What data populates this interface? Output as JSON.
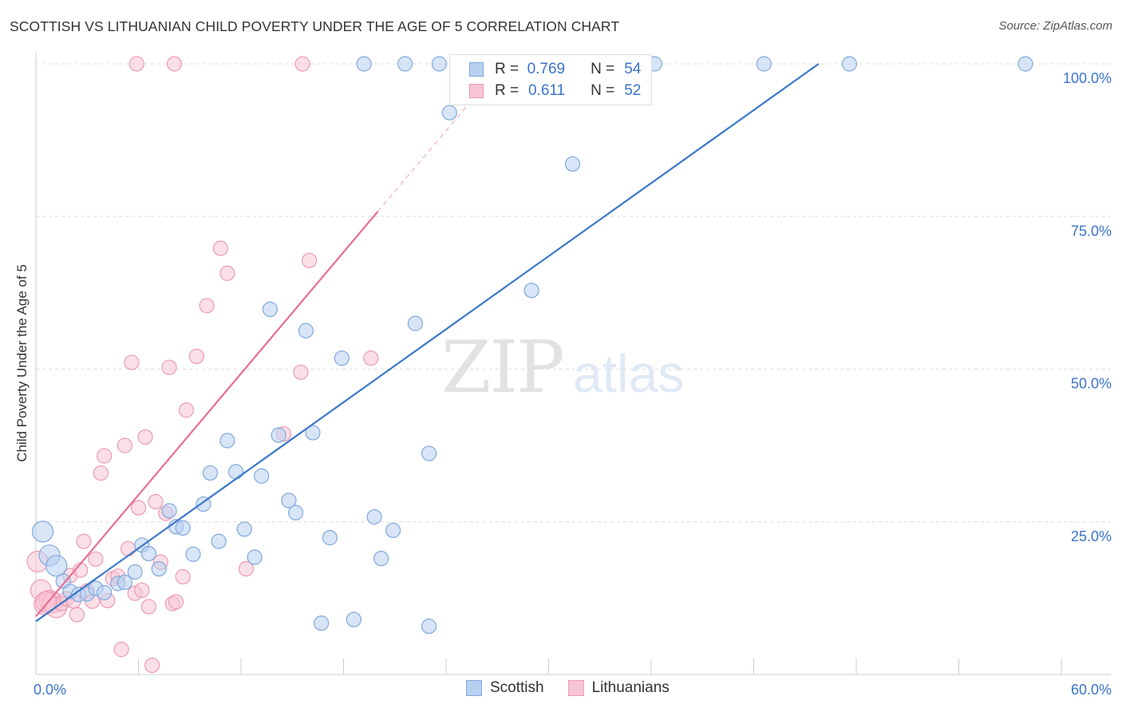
{
  "title": "SCOTTISH VS LITHUANIAN CHILD POVERTY UNDER THE AGE OF 5 CORRELATION CHART",
  "source": "Source: ZipAtlas.com",
  "watermark": {
    "zip": "ZIP",
    "atlas": "atlas"
  },
  "legend": {
    "scottish": {
      "r_label": "R =",
      "r_value": "0.769",
      "n_label": "N =",
      "n_value": "54"
    },
    "lithuanian": {
      "r_label": "R =",
      "r_value": "0.611",
      "n_label": "N =",
      "n_value": "52"
    }
  },
  "colors": {
    "scottish_fill": "#b8d0f0",
    "scottish_stroke": "#7ea8dd",
    "scottish_line": "#3a78c8",
    "lithuanian_fill": "#f7c4d4",
    "lithuanian_stroke": "#ec9ab4",
    "lithuanian_line": "#e86d94",
    "axis_text": "#3b74c9",
    "grid": "#dddddd"
  },
  "chart_data": {
    "type": "scatter",
    "xlabel": "",
    "ylabel": "Child Poverty Under the Age of 5",
    "xlim": [
      0,
      60
    ],
    "ylim": [
      0,
      100
    ],
    "x_tick_labels": [
      "0.0%",
      "60.0%"
    ],
    "y_tick_labels": [
      "25.0%",
      "50.0%",
      "75.0%",
      "100.0%"
    ],
    "y_ticks": [
      25,
      50,
      75,
      100
    ],
    "grid": true,
    "legend_position": "top-center",
    "series": [
      {
        "name": "Scottish",
        "trend": {
          "x0": 0,
          "y0": 8.7,
          "x1": 45.8,
          "y1": 100
        },
        "points": [
          [
            0.4,
            23.4
          ],
          [
            0.8,
            19.5
          ],
          [
            1.2,
            17.8
          ],
          [
            1.6,
            15.3
          ],
          [
            2.0,
            13.6
          ],
          [
            2.5,
            13.1
          ],
          [
            3.0,
            13.2
          ],
          [
            3.5,
            14.1
          ],
          [
            4.0,
            13.4
          ],
          [
            4.8,
            14.9
          ],
          [
            5.2,
            15.1
          ],
          [
            5.8,
            16.8
          ],
          [
            6.2,
            21.2
          ],
          [
            6.6,
            19.8
          ],
          [
            7.2,
            17.3
          ],
          [
            7.8,
            26.8
          ],
          [
            8.2,
            24.2
          ],
          [
            8.6,
            24.0
          ],
          [
            9.2,
            19.7
          ],
          [
            9.8,
            27.9
          ],
          [
            10.2,
            33.0
          ],
          [
            10.7,
            21.8
          ],
          [
            11.2,
            38.3
          ],
          [
            11.7,
            33.2
          ],
          [
            12.2,
            23.8
          ],
          [
            12.8,
            19.2
          ],
          [
            13.2,
            32.5
          ],
          [
            13.7,
            59.8
          ],
          [
            14.2,
            39.2
          ],
          [
            14.8,
            28.5
          ],
          [
            15.2,
            26.5
          ],
          [
            15.8,
            56.3
          ],
          [
            16.2,
            39.6
          ],
          [
            16.7,
            8.4
          ],
          [
            17.2,
            22.4
          ],
          [
            17.9,
            51.8
          ],
          [
            18.6,
            9.0
          ],
          [
            19.8,
            25.8
          ],
          [
            20.2,
            19.0
          ],
          [
            20.9,
            23.6
          ],
          [
            22.2,
            57.5
          ],
          [
            23.0,
            36.2
          ],
          [
            23.0,
            7.9
          ],
          [
            24.2,
            92.0
          ],
          [
            19.2,
            100
          ],
          [
            21.6,
            100
          ],
          [
            23.6,
            100
          ],
          [
            27.0,
            100
          ],
          [
            29.0,
            62.9
          ],
          [
            31.4,
            83.6
          ],
          [
            36.2,
            100
          ],
          [
            42.6,
            100
          ],
          [
            47.6,
            100
          ],
          [
            57.9,
            100
          ]
        ]
      },
      {
        "name": "Lithuanians",
        "trend": {
          "x0": 0,
          "y0": 9.5,
          "x1": 20,
          "y1": 75.8
        },
        "points": [
          [
            0.1,
            18.5
          ],
          [
            0.3,
            13.8
          ],
          [
            0.5,
            11.5
          ],
          [
            0.8,
            12.1
          ],
          [
            1.0,
            11.8
          ],
          [
            1.2,
            11.0
          ],
          [
            1.5,
            11.6
          ],
          [
            1.8,
            12.4
          ],
          [
            2.0,
            16.2
          ],
          [
            2.2,
            12.0
          ],
          [
            2.4,
            9.8
          ],
          [
            2.6,
            17.1
          ],
          [
            2.8,
            21.8
          ],
          [
            3.0,
            13.7
          ],
          [
            3.3,
            12.0
          ],
          [
            3.5,
            18.9
          ],
          [
            3.8,
            33.0
          ],
          [
            4.0,
            35.8
          ],
          [
            4.2,
            12.1
          ],
          [
            4.5,
            15.7
          ],
          [
            4.8,
            16.1
          ],
          [
            5.0,
            4.1
          ],
          [
            5.2,
            37.5
          ],
          [
            5.4,
            20.6
          ],
          [
            5.6,
            51.1
          ],
          [
            5.8,
            13.3
          ],
          [
            6.0,
            27.3
          ],
          [
            6.2,
            13.8
          ],
          [
            6.4,
            38.9
          ],
          [
            6.6,
            11.1
          ],
          [
            6.8,
            1.5
          ],
          [
            7.0,
            28.3
          ],
          [
            7.3,
            18.4
          ],
          [
            7.6,
            26.4
          ],
          [
            7.8,
            50.3
          ],
          [
            8.0,
            11.6
          ],
          [
            8.2,
            11.9
          ],
          [
            8.6,
            16.0
          ],
          [
            8.8,
            43.3
          ],
          [
            9.4,
            52.1
          ],
          [
            10.0,
            60.4
          ],
          [
            10.8,
            69.8
          ],
          [
            11.2,
            65.7
          ],
          [
            12.3,
            17.3
          ],
          [
            14.5,
            39.4
          ],
          [
            15.5,
            49.5
          ],
          [
            16.0,
            67.8
          ],
          [
            19.6,
            51.8
          ],
          [
            5.9,
            100
          ],
          [
            8.1,
            100
          ],
          [
            15.6,
            100
          ],
          [
            0.6,
            11.9
          ]
        ]
      }
    ]
  }
}
